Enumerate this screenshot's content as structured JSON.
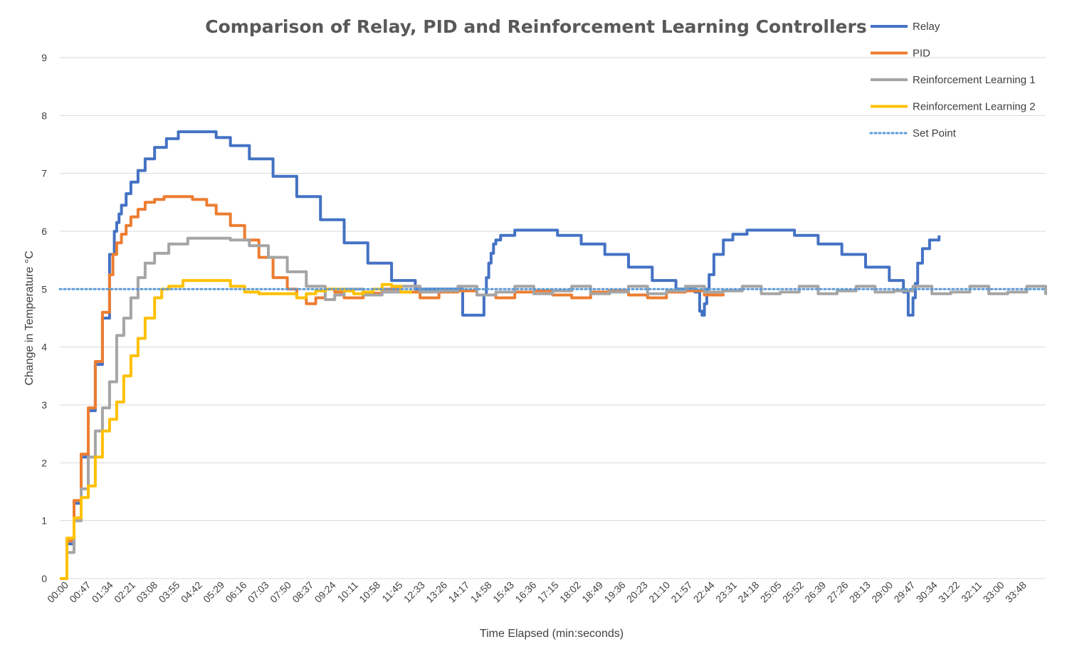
{
  "chart_data": {
    "type": "line",
    "title": "Comparison of Relay, PID and Reinforcement Learning Controllers",
    "xlabel": "Time Elapsed (min:seconds)",
    "ylabel": "Change in Temperature °C",
    "ylim": [
      0,
      9
    ],
    "yticks": [
      0,
      1,
      2,
      3,
      4,
      5,
      6,
      7,
      8,
      9
    ],
    "xlim": [
      0,
      2080
    ],
    "grid": true,
    "legend_position": "top-right",
    "xtick_labels": [
      "00:00",
      "00:47",
      "01:34",
      "02:21",
      "03:08",
      "03:55",
      "04:42",
      "05:29",
      "06:16",
      "07:03",
      "07:50",
      "08:37",
      "09:24",
      "10:11",
      "10:58",
      "11:45",
      "12:33",
      "13:26",
      "14:17",
      "14:58",
      "15:43",
      "16:36",
      "17:15",
      "18:02",
      "18:49",
      "19:36",
      "20:23",
      "21:10",
      "21:57",
      "22:44",
      "23:31",
      "24:18",
      "25:05",
      "25:52",
      "26:39",
      "27:26",
      "28:13",
      "29:00",
      "29:47",
      "30:34",
      "31:22",
      "32:11",
      "33:00",
      "33:48"
    ],
    "series": [
      {
        "name": "Relay",
        "color": "#4472c4",
        "style": "solid",
        "x": [
          0,
          15,
          30,
          45,
          60,
          75,
          90,
          105,
          115,
          120,
          125,
          130,
          140,
          150,
          165,
          180,
          200,
          225,
          250,
          275,
          300,
          330,
          360,
          400,
          450,
          500,
          550,
          600,
          650,
          700,
          750,
          800,
          850,
          880,
          895,
          900,
          905,
          910,
          915,
          920,
          930,
          945,
          960,
          990,
          1000,
          1050,
          1100,
          1150,
          1200,
          1250,
          1300,
          1340,
          1350,
          1355,
          1360,
          1365,
          1370,
          1380,
          1400,
          1420,
          1450,
          1500,
          1550,
          1600,
          1650,
          1700,
          1750,
          1780,
          1790,
          1795,
          1800,
          1805,
          1810,
          1820,
          1835,
          1855
        ],
        "y": [
          0,
          0.6,
          1.3,
          2.1,
          2.9,
          3.7,
          4.5,
          5.6,
          6.0,
          6.15,
          6.3,
          6.45,
          6.65,
          6.85,
          7.05,
          7.25,
          7.45,
          7.6,
          7.72,
          7.72,
          7.72,
          7.62,
          7.48,
          7.25,
          6.95,
          6.6,
          6.2,
          5.8,
          5.45,
          5.15,
          5.0,
          5.0,
          4.55,
          4.55,
          4.9,
          5.2,
          5.45,
          5.62,
          5.78,
          5.85,
          5.93,
          5.93,
          6.02,
          6.02,
          6.02,
          5.93,
          5.78,
          5.6,
          5.38,
          5.15,
          5.0,
          4.95,
          4.62,
          4.55,
          4.75,
          5.0,
          5.25,
          5.6,
          5.85,
          5.95,
          6.02,
          6.02,
          5.93,
          5.78,
          5.6,
          5.38,
          5.15,
          4.95,
          4.55,
          4.55,
          4.85,
          5.1,
          5.45,
          5.7,
          5.85,
          5.93
        ]
      },
      {
        "name": "PID",
        "color": "#ed7d31",
        "style": "solid",
        "x": [
          0,
          15,
          30,
          45,
          60,
          75,
          90,
          105,
          112,
          120,
          130,
          140,
          150,
          165,
          180,
          200,
          220,
          250,
          280,
          310,
          330,
          360,
          390,
          420,
          450,
          480,
          500,
          520,
          540,
          560,
          580,
          600,
          640,
          680,
          720,
          760,
          800,
          840,
          880,
          920,
          960,
          1000,
          1040,
          1080,
          1120,
          1160,
          1200,
          1240,
          1280,
          1320,
          1360,
          1400
        ],
        "y": [
          0,
          0.65,
          1.35,
          2.15,
          2.95,
          3.75,
          4.6,
          5.25,
          5.6,
          5.8,
          5.95,
          6.1,
          6.25,
          6.38,
          6.5,
          6.55,
          6.6,
          6.6,
          6.55,
          6.45,
          6.3,
          6.1,
          5.85,
          5.55,
          5.2,
          5.0,
          4.85,
          4.75,
          4.85,
          5.0,
          4.95,
          4.85,
          4.93,
          5.0,
          4.95,
          4.85,
          4.95,
          4.97,
          4.9,
          4.85,
          4.95,
          4.97,
          4.9,
          4.85,
          4.95,
          4.97,
          4.9,
          4.85,
          4.95,
          4.97,
          4.9,
          4.88
        ]
      },
      {
        "name": "Reinforcement Learning 1",
        "color": "#a5a5a5",
        "style": "solid",
        "x": [
          0,
          15,
          30,
          45,
          60,
          75,
          90,
          105,
          120,
          135,
          150,
          165,
          180,
          200,
          230,
          270,
          300,
          330,
          360,
          400,
          440,
          480,
          520,
          560,
          580,
          600,
          640,
          680,
          720,
          760,
          800,
          840,
          880,
          920,
          960,
          1000,
          1040,
          1080,
          1120,
          1160,
          1200,
          1240,
          1280,
          1320,
          1360,
          1400,
          1440,
          1480,
          1520,
          1560,
          1600,
          1640,
          1680,
          1720,
          1760,
          1800,
          1840,
          1880,
          1920,
          1960,
          2000,
          2040,
          2080
        ],
        "y": [
          0,
          0.45,
          1.0,
          1.55,
          2.1,
          2.55,
          2.95,
          3.4,
          4.2,
          4.5,
          4.85,
          5.2,
          5.45,
          5.62,
          5.78,
          5.88,
          5.88,
          5.88,
          5.85,
          5.75,
          5.55,
          5.3,
          5.05,
          4.82,
          4.9,
          5.0,
          4.9,
          4.95,
          5.05,
          4.95,
          4.97,
          5.05,
          4.9,
          4.95,
          5.05,
          4.92,
          4.97,
          5.05,
          4.92,
          4.95,
          5.05,
          4.92,
          4.97,
          5.05,
          4.95,
          4.97,
          5.05,
          4.92,
          4.95,
          5.05,
          4.92,
          4.97,
          5.05,
          4.95,
          4.97,
          5.05,
          4.92,
          4.95,
          5.05,
          4.92,
          4.95,
          5.05,
          4.9
        ]
      },
      {
        "name": "Reinforcement Learning 2",
        "color": "#ffc000",
        "style": "solid",
        "x": [
          0,
          15,
          30,
          45,
          60,
          75,
          90,
          105,
          120,
          135,
          150,
          165,
          180,
          200,
          215,
          230,
          260,
          280,
          300,
          330,
          360,
          390,
          420,
          450,
          480,
          500,
          520,
          540,
          560,
          580,
          600,
          620,
          640,
          660,
          680,
          700,
          720,
          740
        ],
        "y": [
          0,
          0.7,
          1.05,
          1.4,
          1.6,
          2.1,
          2.55,
          2.75,
          3.05,
          3.5,
          3.85,
          4.15,
          4.5,
          4.85,
          5.0,
          5.05,
          5.15,
          5.15,
          5.15,
          5.15,
          5.05,
          4.95,
          4.92,
          4.92,
          4.92,
          4.85,
          4.92,
          4.97,
          5.0,
          5.0,
          4.97,
          4.92,
          4.95,
          5.0,
          5.08,
          5.05,
          4.95,
          4.92
        ]
      },
      {
        "name": "Set Point",
        "color": "#5b9bd5",
        "style": "dotted",
        "x": [
          0,
          2080
        ],
        "y": [
          5,
          5
        ]
      }
    ]
  }
}
